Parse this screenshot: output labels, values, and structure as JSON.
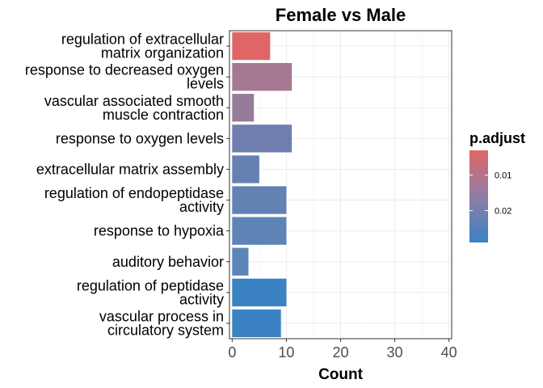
{
  "chart_data": {
    "type": "bar",
    "orientation": "horizontal",
    "title": "Female vs Male",
    "xlabel": "Count",
    "ylabel": "",
    "xlim": [
      -0.5,
      40.5
    ],
    "xticks": [
      0,
      10,
      20,
      30,
      40
    ],
    "grid": true,
    "categories": [
      "regulation of extracellular\nmatrix organization",
      "response to decreased oxygen\nlevels",
      "vascular associated smooth\nmuscle contraction",
      "response to oxygen levels",
      "extracellular matrix assembly",
      "regulation of endopeptidase\nactivity",
      "response to hypoxia",
      "auditory behavior",
      "regulation of peptidase\nactivity",
      "vascular process in\ncirculatory system"
    ],
    "values": [
      7,
      11,
      4,
      11,
      5,
      10,
      10,
      3,
      10,
      9
    ],
    "p_adjust": [
      0.0045,
      0.0105,
      0.0135,
      0.0205,
      0.0225,
      0.0225,
      0.0235,
      0.0275,
      0.029,
      0.0292
    ],
    "colors": [
      "#E06666",
      "#A67891",
      "#967B9A",
      "#6F7DAF",
      "#6680B2",
      "#6282B4",
      "#5E84B6",
      "#5B86B8",
      "#3B82C2",
      "#3A82C2"
    ],
    "legend": {
      "title": "p.adjust",
      "placement": "right",
      "ticks": [
        0.01,
        0.02
      ],
      "tick_labels": [
        "0.01",
        "0.02"
      ],
      "range": [
        0.003,
        0.029
      ],
      "color_low": "#E06666",
      "color_high": "#3A82C2"
    }
  }
}
